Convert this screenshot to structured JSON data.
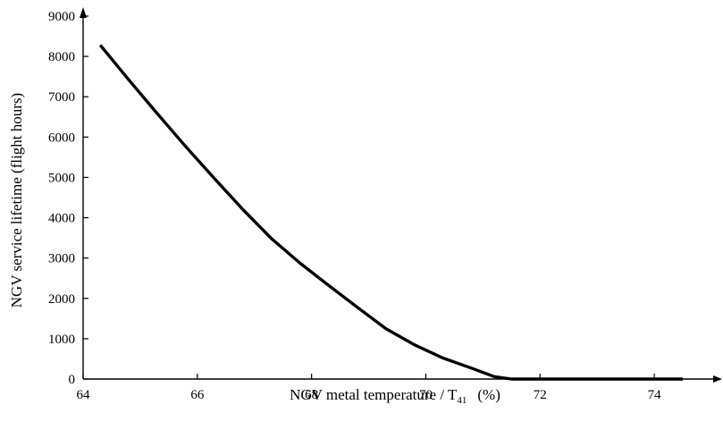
{
  "chart_data": {
    "type": "line",
    "title": "",
    "xlabel": {
      "main": "NGV metal temperature / T",
      "subscript": "41",
      "unit": "(%)"
    },
    "ylabel": "NGV service lifetime   (flight hours)",
    "xlim": [
      64,
      75
    ],
    "ylim": [
      0,
      9000
    ],
    "x_ticks": [
      64,
      66,
      68,
      70,
      72,
      74
    ],
    "y_ticks": [
      0,
      1000,
      2000,
      3000,
      4000,
      5000,
      6000,
      7000,
      8000,
      9000
    ],
    "grid": false,
    "legend": "none",
    "line_color": "#000000",
    "series": [
      {
        "x": [
          64.3,
          64.8,
          65.3,
          65.8,
          66.3,
          66.8,
          67.3,
          67.8,
          68.3,
          68.8,
          69.3,
          69.8,
          70.3,
          70.8,
          71.2,
          71.5,
          72.0,
          72.5,
          73.0,
          73.5,
          74.0,
          74.5
        ],
        "y": [
          8280,
          7420,
          6580,
          5760,
          4970,
          4200,
          3480,
          2870,
          2320,
          1780,
          1250,
          850,
          520,
          270,
          60,
          0,
          0,
          0,
          0,
          0,
          0,
          0
        ]
      }
    ]
  }
}
